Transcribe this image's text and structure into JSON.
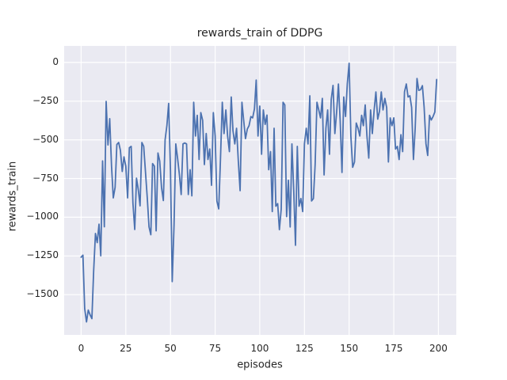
{
  "figure": {
    "title": "rewards_train of DDPG",
    "xlabel": "episodes",
    "ylabel": "rewards_train"
  },
  "chart_data": {
    "type": "line",
    "title": "rewards_train of DDPG",
    "xlabel": "episodes",
    "ylabel": "rewards_train",
    "xlim": [
      -9.5,
      210
    ],
    "ylim": [
      -1760,
      107
    ],
    "x_ticks": [
      0,
      25,
      50,
      75,
      100,
      125,
      150,
      175,
      200
    ],
    "x_tick_labels": [
      "0",
      "25",
      "50",
      "75",
      "100",
      "125",
      "150",
      "175",
      "200"
    ],
    "y_ticks": [
      0,
      -250,
      -500,
      -750,
      -1000,
      -1250,
      -1500
    ],
    "y_tick_labels": [
      "0",
      "−250",
      "−500",
      "−750",
      "−1000",
      "−1250",
      "−1500"
    ],
    "grid": true,
    "legend": false,
    "style": "seaborn-darkgrid",
    "axes_bg": "#eaeaf2",
    "grid_color": "#ffffff",
    "line_color": "#4c72b0",
    "text_color": "#262626",
    "series": [
      {
        "name": "rewards_train",
        "x_start": 0,
        "x_step": 1,
        "values": [
          -1258,
          -1245,
          -1590,
          -1676,
          -1600,
          -1630,
          -1655,
          -1350,
          -1105,
          -1164,
          -1045,
          -1249,
          -636,
          -1062,
          -252,
          -533,
          -363,
          -670,
          -875,
          -807,
          -530,
          -517,
          -568,
          -704,
          -610,
          -670,
          -875,
          -551,
          -542,
          -909,
          -1079,
          -747,
          -823,
          -926,
          -517,
          -542,
          -704,
          -875,
          -1062,
          -1113,
          -653,
          -670,
          -1088,
          -585,
          -636,
          -807,
          -892,
          -500,
          -406,
          -265,
          -700,
          -1416,
          -1050,
          -526,
          -620,
          -727,
          -853,
          -526,
          -520,
          -526,
          -853,
          -693,
          -862,
          -257,
          -475,
          -341,
          -627,
          -324,
          -374,
          -660,
          -459,
          -627,
          -559,
          -794,
          -324,
          -475,
          -895,
          -946,
          -627,
          -257,
          -459,
          -307,
          -475,
          -576,
          -223,
          -442,
          -526,
          -425,
          -643,
          -828,
          -257,
          -374,
          -492,
          -430,
          -408,
          -350,
          -358,
          -300,
          -114,
          -475,
          -282,
          -593,
          -307,
          -400,
          -340,
          -693,
          -576,
          -963,
          -425,
          -929,
          -912,
          -1080,
          -946,
          -257,
          -274,
          -996,
          -761,
          -1063,
          -526,
          -828,
          -1181,
          -542,
          -929,
          -879,
          -963,
          -526,
          -425,
          -526,
          -215,
          -895,
          -879,
          -660,
          -257,
          -307,
          -358,
          -232,
          -727,
          -425,
          -307,
          -593,
          -240,
          -148,
          -459,
          -324,
          -139,
          -374,
          -711,
          -223,
          -349,
          -139,
          -5,
          -475,
          -677,
          -643,
          -391,
          -425,
          -475,
          -341,
          -408,
          -274,
          -475,
          -618,
          -307,
          -459,
          -307,
          -190,
          -366,
          -316,
          -190,
          -307,
          -232,
          -291,
          -643,
          -358,
          -408,
          -358,
          -559,
          -542,
          -627,
          -467,
          -576,
          -190,
          -139,
          -223,
          -215,
          -291,
          -627,
          -425,
          -103,
          -180,
          -176,
          -150,
          -290,
          -525,
          -601,
          -341,
          -372,
          -349,
          -320,
          -110
        ]
      }
    ]
  }
}
